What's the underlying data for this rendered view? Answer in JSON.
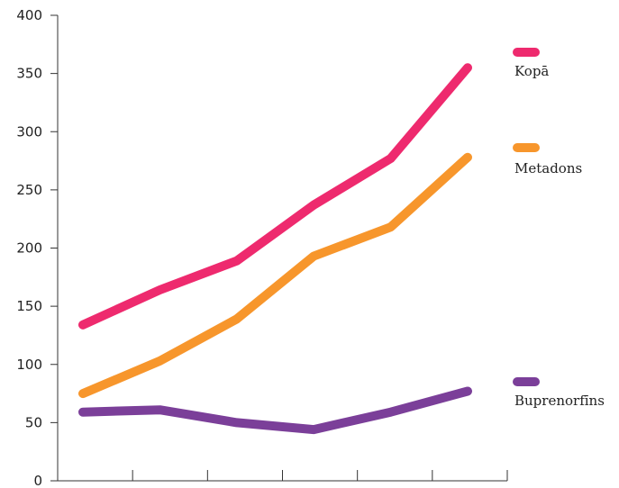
{
  "chart_data": {
    "type": "line",
    "x": [
      1,
      2,
      3,
      4,
      5,
      6
    ],
    "ylim": [
      0,
      400
    ],
    "yticks": [
      "0",
      "50",
      "100",
      "150",
      "200",
      "250",
      "300",
      "350",
      "400"
    ],
    "grid": false,
    "legend_placement": "right",
    "series": [
      {
        "name": "Kopā",
        "color": "#ee2a6e",
        "values": [
          134,
          164,
          189,
          237,
          277,
          355
        ]
      },
      {
        "name": "Metadons",
        "color": "#f7962c",
        "values": [
          75,
          103,
          139,
          193,
          218,
          278
        ]
      },
      {
        "name": "Buprenorfīns",
        "color": "#7b3f99",
        "values": [
          59,
          61,
          50,
          44,
          59,
          77
        ]
      }
    ]
  }
}
